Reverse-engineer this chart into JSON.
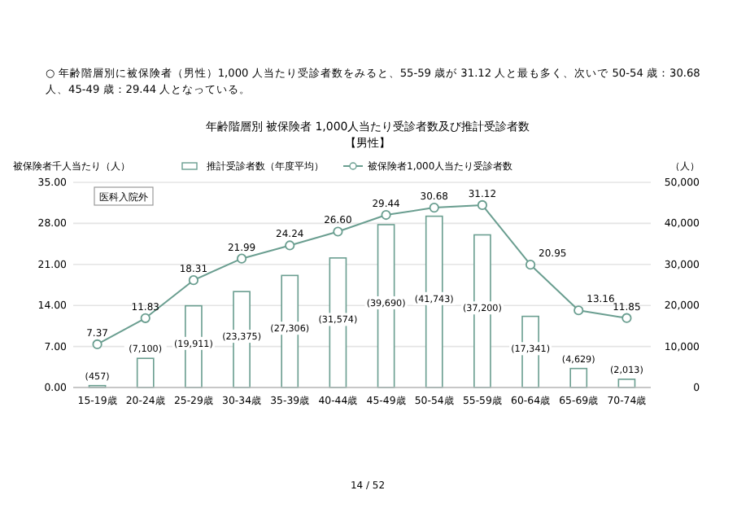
{
  "chart_data": {
    "type": "bar",
    "title": "年齢階層別 被保険者 1,000人当たり受診者数及び推計受診者数",
    "subtitle": "【男性】",
    "ylabel": "被保険者千人当たり（人）",
    "y2label": "（人）",
    "annotations": [
      "○ 年齢階層別に被保険者（男性）1,000 人当たり受診者数をみると、55-59 歳が 31.12 人と最も多く、次いで 50-54 歳：30.68 人、45-49 歳：29.44 人となっている。",
      "医科入院外",
      "14 / 52"
    ],
    "categories": [
      "15-19歳",
      "20-24歳",
      "25-29歳",
      "30-34歳",
      "35-39歳",
      "40-44歳",
      "45-49歳",
      "50-54歳",
      "55-59歳",
      "60-64歳",
      "65-69歳",
      "70-74歳"
    ],
    "series": [
      {
        "name": "推計受診者数（年度平均）",
        "axis": "y2",
        "color": "#6a9e90",
        "values": [
          457,
          7100,
          19911,
          23375,
          27306,
          31574,
          39690,
          41743,
          37200,
          17341,
          4629,
          2013
        ],
        "value_labels": [
          "(457)",
          "(7,100)",
          "(19,911)",
          "(23,375)",
          "(27,306)",
          "(31,574)",
          "(39,690)",
          "(41,743)",
          "(37,200)",
          "(17,341)",
          "(4,629)",
          "(2,013)"
        ]
      },
      {
        "name": "被保険者1,000人当たり受診者数",
        "type": "line",
        "color": "#6a9e90",
        "values": [
          7.37,
          11.83,
          18.31,
          21.99,
          24.24,
          26.6,
          29.44,
          30.68,
          31.12,
          20.95,
          13.16,
          11.85
        ],
        "value_labels": [
          "7.37",
          "11.83",
          "18.31",
          "21.99",
          "24.24",
          "26.60",
          "29.44",
          "30.68",
          "31.12",
          "20.95",
          "13.16",
          "11.85"
        ]
      }
    ],
    "ylim": [
      0,
      35
    ],
    "yticks": [
      {
        "value": 0,
        "label": "0.00"
      },
      {
        "value": 7,
        "label": "7.00"
      },
      {
        "value": 14,
        "label": "14.00"
      },
      {
        "value": 21,
        "label": "21.00"
      },
      {
        "value": 28,
        "label": "28.00"
      },
      {
        "value": 35,
        "label": "35.00"
      }
    ],
    "y2lim": [
      0,
      50000
    ],
    "y2ticks": [
      {
        "value": 0,
        "label": "0"
      },
      {
        "value": 10000,
        "label": "10,000"
      },
      {
        "value": 20000,
        "label": "20,000"
      },
      {
        "value": 30000,
        "label": "30,000"
      },
      {
        "value": 40000,
        "label": "40,000"
      },
      {
        "value": 50000,
        "label": "50,000"
      }
    ],
    "grid": "y",
    "marker": "circle",
    "legend": "top"
  }
}
